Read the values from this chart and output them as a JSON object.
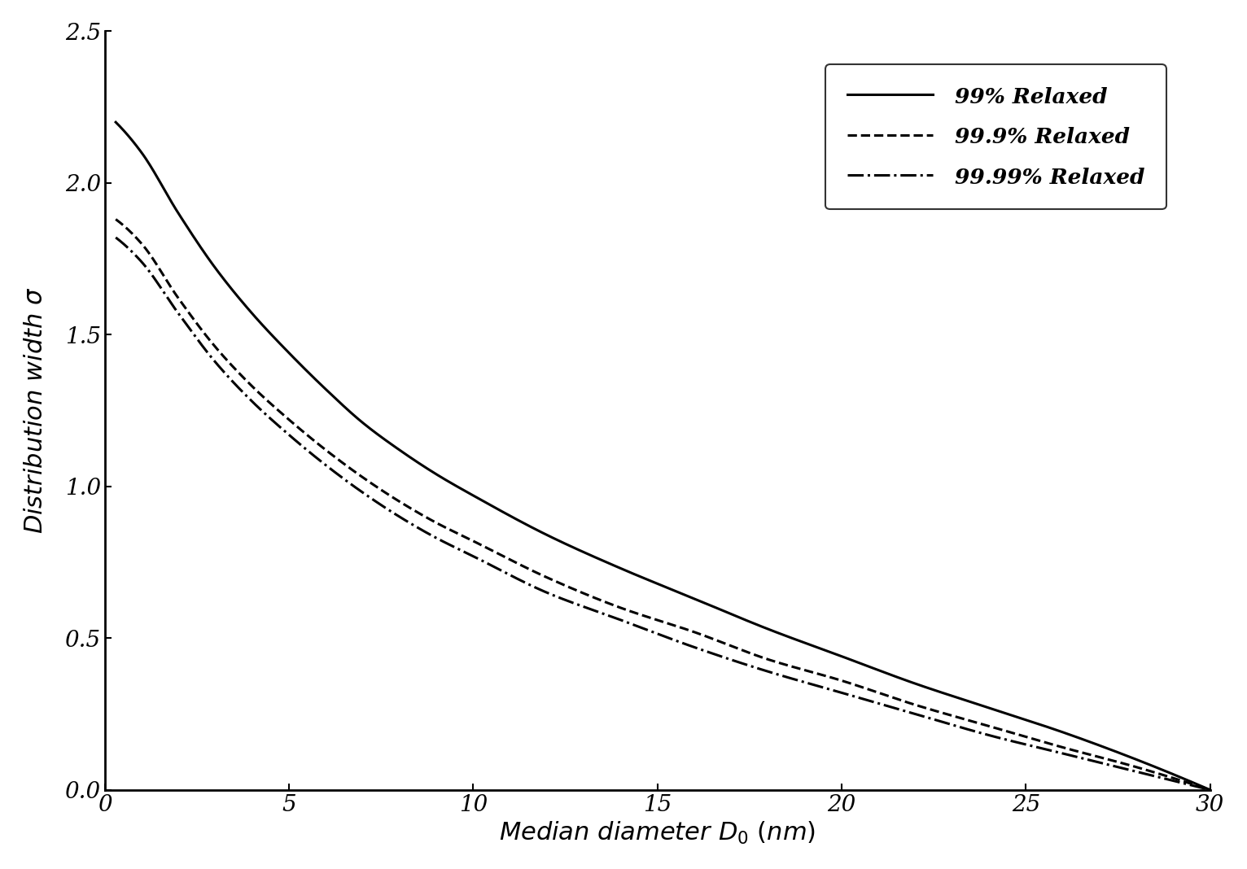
{
  "title": "",
  "xlabel": "Median diameter $D_0$ (nm)",
  "ylabel": "Distribution width σ",
  "xlim": [
    0,
    30
  ],
  "ylim": [
    0,
    2.5
  ],
  "xticks": [
    0,
    5,
    10,
    15,
    20,
    25,
    30
  ],
  "yticks": [
    0,
    0.5,
    1.0,
    1.5,
    2.0,
    2.5
  ],
  "legend_labels": [
    "99% Relaxed",
    "99.9% Relaxed",
    "99.99% Relaxed"
  ],
  "background_color": "#ffffff",
  "font_size_labels": 22,
  "font_size_ticks": 20,
  "font_size_legend": 19,
  "curve1_x": [
    0.3,
    1,
    2,
    3,
    4,
    5,
    6,
    7,
    8,
    9,
    10,
    12,
    14,
    16,
    18,
    20,
    22,
    24,
    26,
    28,
    30
  ],
  "curve1_y": [
    2.2,
    2.1,
    1.9,
    1.72,
    1.57,
    1.44,
    1.32,
    1.21,
    1.12,
    1.04,
    0.97,
    0.84,
    0.73,
    0.63,
    0.53,
    0.44,
    0.35,
    0.27,
    0.19,
    0.1,
    0.0
  ],
  "curve2_x": [
    0.3,
    1,
    2,
    3,
    4,
    5,
    6,
    7,
    8,
    9,
    10,
    12,
    14,
    16,
    18,
    20,
    22,
    24,
    26,
    28,
    30
  ],
  "curve2_y": [
    1.88,
    1.8,
    1.62,
    1.46,
    1.33,
    1.22,
    1.12,
    1.03,
    0.95,
    0.88,
    0.82,
    0.7,
    0.6,
    0.52,
    0.43,
    0.36,
    0.28,
    0.21,
    0.14,
    0.075,
    0.0
  ],
  "curve3_x": [
    0.3,
    1,
    2,
    3,
    4,
    5,
    6,
    7,
    8,
    9,
    10,
    12,
    14,
    16,
    18,
    20,
    22,
    24,
    26,
    28,
    30
  ],
  "curve3_y": [
    1.82,
    1.74,
    1.57,
    1.41,
    1.28,
    1.17,
    1.07,
    0.98,
    0.9,
    0.83,
    0.77,
    0.65,
    0.56,
    0.47,
    0.39,
    0.32,
    0.25,
    0.18,
    0.12,
    0.06,
    0.0
  ]
}
